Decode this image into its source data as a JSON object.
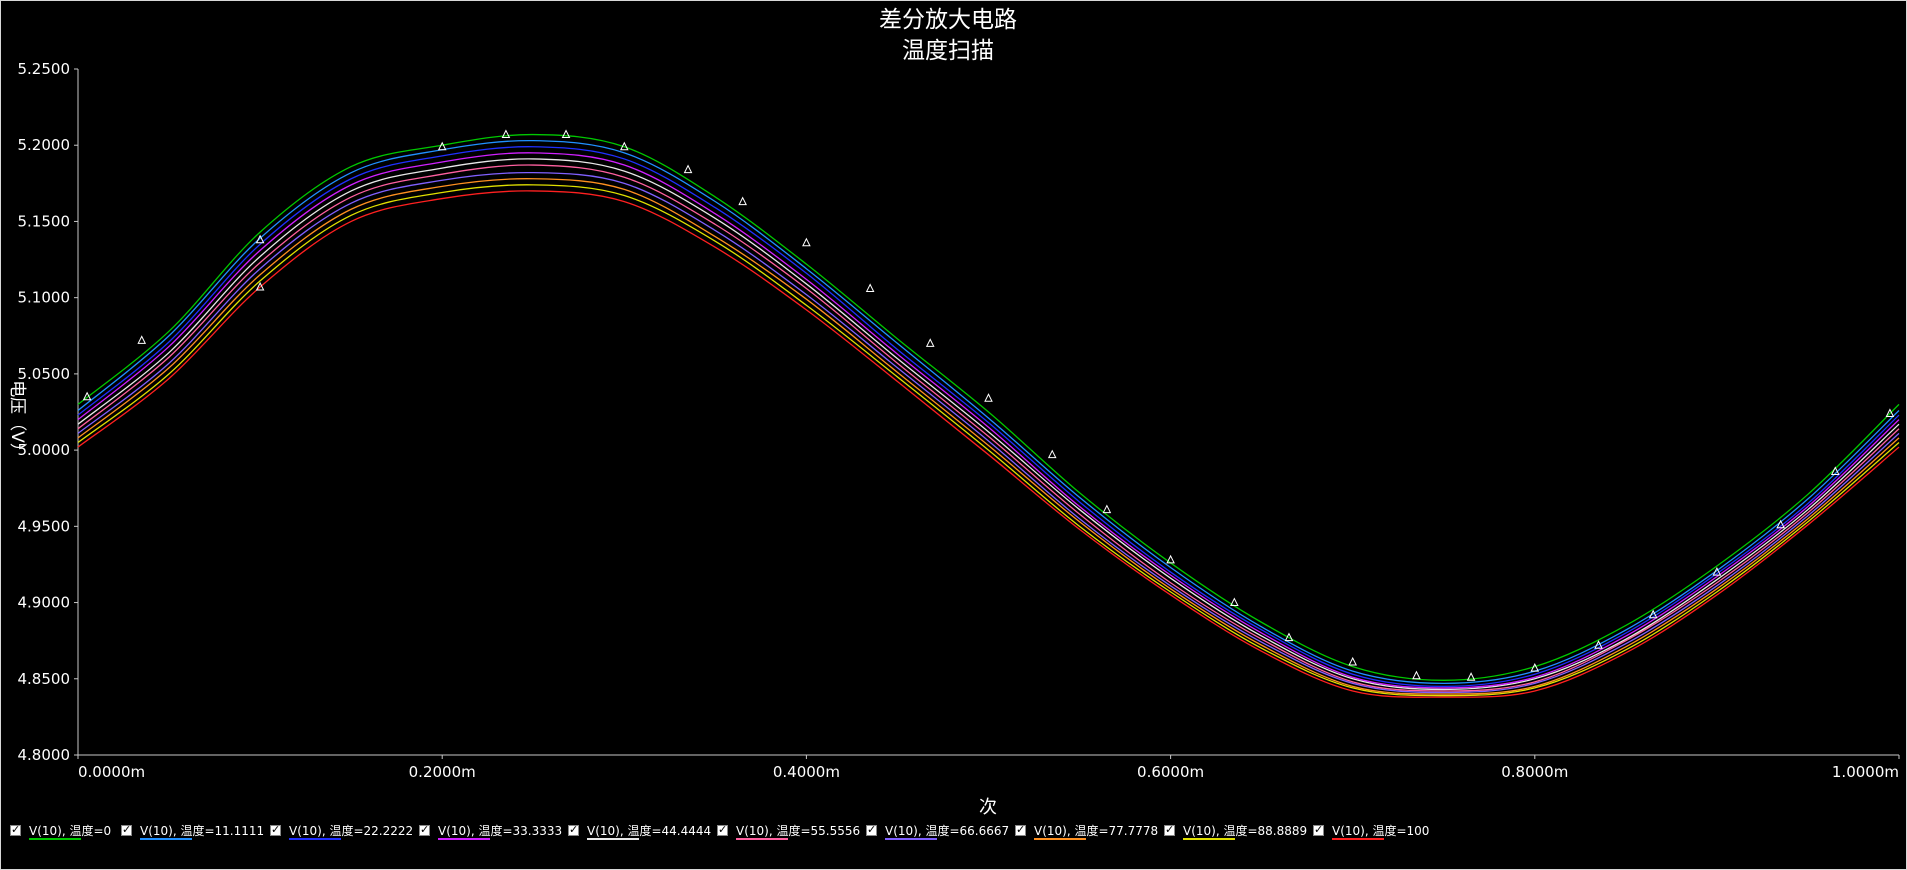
{
  "chart_data": {
    "type": "line",
    "title": "差分放大电路",
    "subtitle": "温度扫描",
    "xlabel": "次",
    "ylabel": "电压（V）",
    "xlim": [
      0,
      1.0
    ],
    "ylim": [
      4.8,
      5.25
    ],
    "x_ticks": [
      "0.0000m",
      "0.2000m",
      "0.4000m",
      "0.6000m",
      "0.8000m",
      "1.0000m"
    ],
    "y_ticks": [
      "5.2500",
      "5.2000",
      "5.1500",
      "5.1000",
      "5.0500",
      "5.0000",
      "4.9500",
      "4.9000",
      "4.8500",
      "4.8000"
    ],
    "x_units": "ms",
    "x": [
      0,
      0.05,
      0.1,
      0.15,
      0.2,
      0.25,
      0.3,
      0.35,
      0.4,
      0.45,
      0.5,
      0.55,
      0.6,
      0.65,
      0.7,
      0.75,
      0.8,
      0.85,
      0.9,
      0.95,
      1.0
    ],
    "series": [
      {
        "name": "V(10), 温度=0",
        "color": "#00c800",
        "values": [
          5.03,
          5.078,
          5.143,
          5.186,
          5.2,
          5.207,
          5.199,
          5.166,
          5.122,
          5.073,
          5.025,
          4.972,
          4.926,
          4.887,
          4.858,
          4.849,
          4.858,
          4.885,
          4.924,
          4.971,
          5.03
        ]
      },
      {
        "name": "V(10), 温度=11.1111",
        "color": "#2090ff",
        "values": [
          5.026,
          5.075,
          5.139,
          5.182,
          5.197,
          5.203,
          5.195,
          5.163,
          5.119,
          5.07,
          5.021,
          4.969,
          4.923,
          4.884,
          4.855,
          4.847,
          4.855,
          4.882,
          4.921,
          4.968,
          5.026
        ]
      },
      {
        "name": "V(10), 温度=22.2222",
        "color": "#2030ff",
        "values": [
          5.023,
          5.071,
          5.135,
          5.178,
          5.193,
          5.199,
          5.191,
          5.159,
          5.116,
          5.066,
          5.018,
          4.966,
          4.92,
          4.882,
          4.853,
          4.845,
          4.853,
          4.88,
          4.919,
          4.965,
          5.023
        ]
      },
      {
        "name": "V(10), 温度=33.3333",
        "color": "#d020ff",
        "values": [
          5.02,
          5.068,
          5.131,
          5.174,
          5.189,
          5.195,
          5.187,
          5.155,
          5.112,
          5.063,
          5.015,
          4.963,
          4.918,
          4.88,
          4.851,
          4.844,
          4.851,
          4.878,
          4.917,
          4.963,
          5.02
        ]
      },
      {
        "name": "V(10), 温度=44.4444",
        "color": "#e8e8e8",
        "values": [
          5.017,
          5.064,
          5.127,
          5.17,
          5.185,
          5.191,
          5.183,
          5.152,
          5.109,
          5.06,
          5.012,
          4.961,
          4.916,
          4.878,
          4.85,
          4.843,
          4.85,
          4.876,
          4.915,
          4.961,
          5.017
        ]
      },
      {
        "name": "V(10), 温度=55.5556",
        "color": "#ff60a0",
        "values": [
          5.014,
          5.061,
          5.123,
          5.166,
          5.181,
          5.187,
          5.179,
          5.148,
          5.106,
          5.057,
          5.009,
          4.958,
          4.913,
          4.876,
          4.848,
          4.842,
          4.848,
          4.875,
          4.913,
          4.959,
          5.014
        ]
      },
      {
        "name": "V(10), 温度=66.6667",
        "color": "#8060ff",
        "values": [
          5.011,
          5.057,
          5.119,
          5.162,
          5.177,
          5.182,
          5.175,
          5.144,
          5.102,
          5.054,
          5.006,
          4.955,
          4.911,
          4.874,
          4.847,
          4.841,
          4.847,
          4.873,
          4.911,
          4.957,
          5.011
        ]
      },
      {
        "name": "V(10), 温度=77.7778",
        "color": "#ff9020",
        "values": [
          5.008,
          5.054,
          5.115,
          5.158,
          5.173,
          5.178,
          5.171,
          5.14,
          5.099,
          5.051,
          5.003,
          4.953,
          4.909,
          4.872,
          4.845,
          4.84,
          4.845,
          4.871,
          4.909,
          4.955,
          5.008
        ]
      },
      {
        "name": "V(10), 温度=88.8889",
        "color": "#e0e000",
        "values": [
          5.005,
          5.05,
          5.111,
          5.154,
          5.169,
          5.174,
          5.167,
          5.137,
          5.095,
          5.048,
          5.0,
          4.95,
          4.907,
          4.87,
          4.844,
          4.839,
          4.844,
          4.869,
          4.907,
          4.953,
          5.005
        ]
      },
      {
        "name": "V(10), 温度=100",
        "color": "#ff2020",
        "values": [
          5.002,
          5.047,
          5.107,
          5.15,
          5.165,
          5.17,
          5.163,
          5.133,
          5.092,
          5.045,
          4.997,
          4.948,
          4.905,
          4.868,
          4.842,
          4.838,
          4.842,
          4.867,
          4.905,
          4.951,
          5.002
        ]
      }
    ],
    "markers": {
      "series_index": 0,
      "shape": "triangle",
      "color": "#ffffff",
      "x": [
        0.005,
        0.035,
        0.1,
        0.1,
        0.2,
        0.235,
        0.268,
        0.3,
        0.335,
        0.365,
        0.4,
        0.435,
        0.468,
        0.5,
        0.535,
        0.565,
        0.6,
        0.635,
        0.665,
        0.7,
        0.735,
        0.765,
        0.8,
        0.835,
        0.865,
        0.9,
        0.935,
        0.965,
        0.995
      ],
      "values": [
        5.035,
        5.072,
        5.107,
        5.138,
        5.199,
        5.207,
        5.207,
        5.199,
        5.184,
        5.163,
        5.136,
        5.106,
        5.07,
        5.034,
        4.997,
        4.961,
        4.928,
        4.9,
        4.877,
        4.861,
        4.852,
        4.851,
        4.857,
        4.872,
        4.892,
        4.92,
        4.951,
        4.986,
        5.024
      ]
    },
    "grid": false,
    "legend_position": "bottom"
  }
}
